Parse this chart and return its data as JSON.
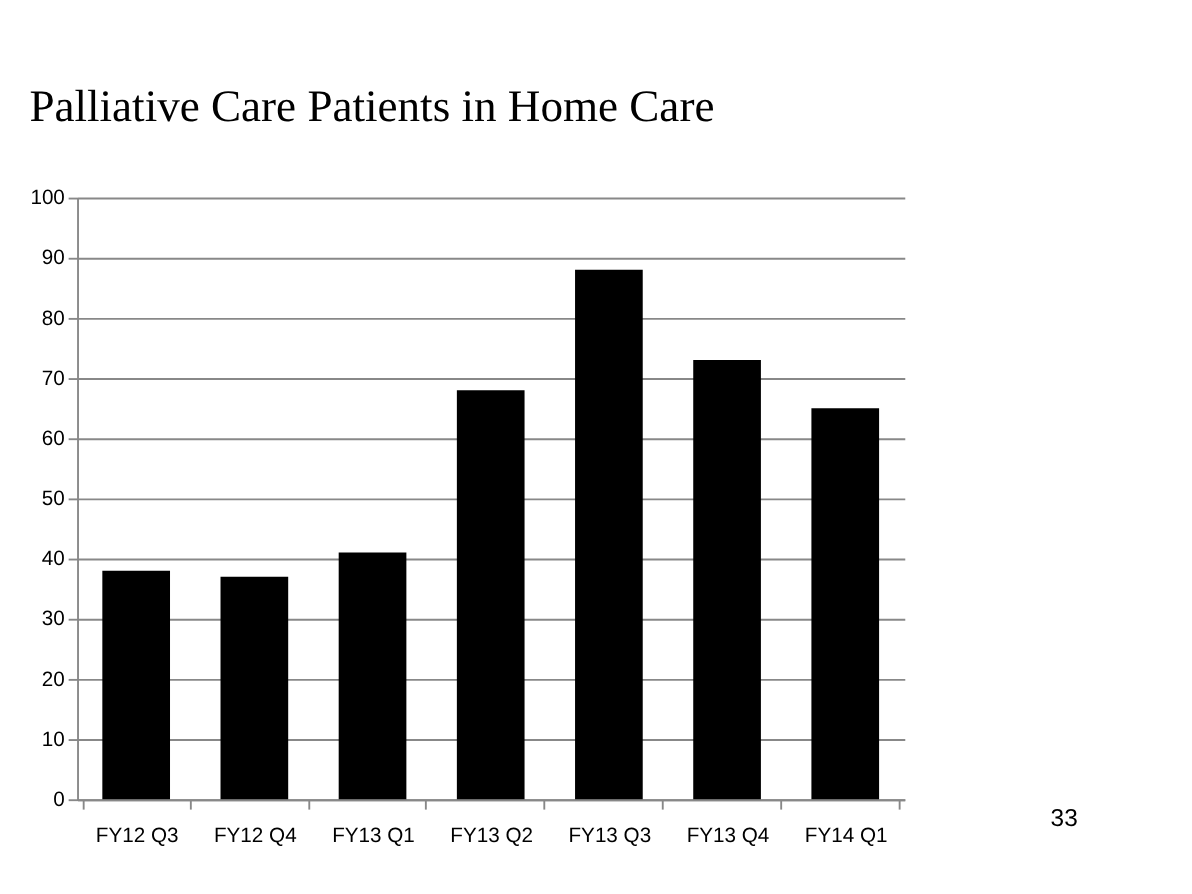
{
  "chart_data": {
    "type": "bar",
    "title": "Palliative Care Patients in Home Care",
    "categories": [
      "FY12 Q3",
      "FY12 Q4",
      "FY13 Q1",
      "FY13 Q2",
      "FY13 Q3",
      "FY13 Q4",
      "FY14 Q1"
    ],
    "values": [
      38,
      37,
      41,
      68,
      88,
      73,
      65
    ],
    "color": "#000000",
    "ylim": [
      0,
      100
    ],
    "yticks": [
      0,
      10,
      20,
      30,
      40,
      50,
      60,
      70,
      80,
      90,
      100
    ],
    "grid": "y",
    "annotations": [
      "33"
    ]
  }
}
